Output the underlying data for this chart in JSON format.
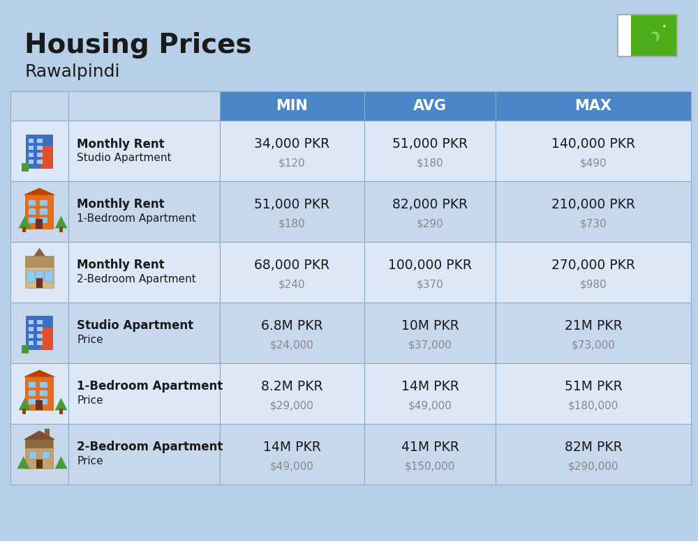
{
  "title": "Housing Prices",
  "subtitle": "Rawalpindi",
  "bg_color": "#b8cfe8",
  "header_bg": "#4a86c8",
  "header_text_color": "#ffffff",
  "row_bg_light": "#dce8f5",
  "row_bg_dark": "#c8d8ec",
  "col_divider_color": "#aabbd0",
  "header_labels": [
    "",
    "",
    "MIN",
    "AVG",
    "MAX"
  ],
  "rows": [
    {
      "icon_type": "blue_building",
      "label_bold": "Monthly Rent",
      "label_normal": "Studio Apartment",
      "min_pkr": "34,000 PKR",
      "min_usd": "$120",
      "avg_pkr": "51,000 PKR",
      "avg_usd": "$180",
      "max_pkr": "140,000 PKR",
      "max_usd": "$490"
    },
    {
      "icon_type": "orange_building",
      "label_bold": "Monthly Rent",
      "label_normal": "1-Bedroom Apartment",
      "min_pkr": "51,000 PKR",
      "min_usd": "$180",
      "avg_pkr": "82,000 PKR",
      "avg_usd": "$290",
      "max_pkr": "210,000 PKR",
      "max_usd": "$730"
    },
    {
      "icon_type": "beige_building",
      "label_bold": "Monthly Rent",
      "label_normal": "2-Bedroom Apartment",
      "min_pkr": "68,000 PKR",
      "min_usd": "$240",
      "avg_pkr": "100,000 PKR",
      "avg_usd": "$370",
      "max_pkr": "270,000 PKR",
      "max_usd": "$980"
    },
    {
      "icon_type": "blue_building",
      "label_bold": "Studio Apartment",
      "label_normal": "Price",
      "min_pkr": "6.8M PKR",
      "min_usd": "$24,000",
      "avg_pkr": "10M PKR",
      "avg_usd": "$37,000",
      "max_pkr": "21M PKR",
      "max_usd": "$73,000"
    },
    {
      "icon_type": "orange_building",
      "label_bold": "1-Bedroom Apartment",
      "label_normal": "Price",
      "min_pkr": "8.2M PKR",
      "min_usd": "$29,000",
      "avg_pkr": "14M PKR",
      "avg_usd": "$49,000",
      "max_pkr": "51M PKR",
      "max_usd": "$180,000"
    },
    {
      "icon_type": "brown_building",
      "label_bold": "2-Bedroom Apartment",
      "label_normal": "Price",
      "min_pkr": "14M PKR",
      "min_usd": "$49,000",
      "avg_pkr": "41M PKR",
      "avg_usd": "$150,000",
      "max_pkr": "82M PKR",
      "max_usd": "$290,000"
    }
  ]
}
